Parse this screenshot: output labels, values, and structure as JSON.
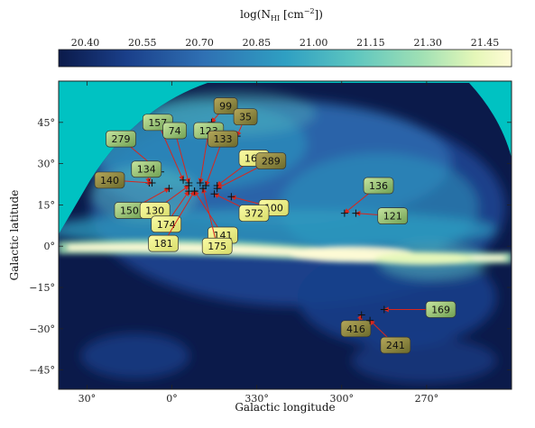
{
  "chart_data": {
    "type": "heatmap",
    "title": "log(N_HI [cm^-2])",
    "colorbar": {
      "label": "log(N",
      "label_sub": "HI",
      "label_tail": " [cm",
      "label_sup": "−2",
      "label_end": "])",
      "ticks": [
        "20.40",
        "20.55",
        "20.70",
        "20.85",
        "21.00",
        "21.15",
        "21.30",
        "21.45"
      ],
      "range": [
        20.33,
        21.52
      ],
      "colormap": [
        "#0b1a4a",
        "#1a3f8a",
        "#2f70b3",
        "#2f9fc2",
        "#5cc5c0",
        "#9fe0b4",
        "#e5f7b8",
        "#fffbd6"
      ]
    },
    "xlabel": "Galactic longitude",
    "ylabel": "Galactic latitude",
    "x_ticks": [
      {
        "value": 30,
        "label": "30°"
      },
      {
        "value": 0,
        "label": "0°"
      },
      {
        "value": 330,
        "label": "330°"
      },
      {
        "value": 300,
        "label": "300°"
      },
      {
        "value": 270,
        "label": "270°"
      }
    ],
    "y_ticks": [
      {
        "value": 45,
        "label": "45°"
      },
      {
        "value": 30,
        "label": "30°"
      },
      {
        "value": 15,
        "label": "15°"
      },
      {
        "value": 0,
        "label": "0°"
      },
      {
        "value": -15,
        "label": "−15°"
      },
      {
        "value": -30,
        "label": "−30°"
      },
      {
        "value": -45,
        "label": "−45°"
      }
    ],
    "xlim": [
      40,
      240
    ],
    "ylim": [
      -52,
      60
    ],
    "background_color": "#00c2c2",
    "arrow_color": "#d9261c",
    "sightlines": [
      {
        "id": "99",
        "label_l": 341,
        "label_b": 51,
        "target_l": 346,
        "target_b": 45
      },
      {
        "id": "35",
        "label_l": 334,
        "label_b": 47,
        "target_l": 337,
        "target_b": 40
      },
      {
        "id": "157",
        "label_l": 5,
        "label_b": 45,
        "target_l": 356,
        "target_b": 24
      },
      {
        "id": "74",
        "label_l": 359,
        "label_b": 42,
        "target_l": 354,
        "target_b": 23
      },
      {
        "id": "123",
        "label_l": 347,
        "label_b": 42,
        "target_l": 350,
        "target_b": 23
      },
      {
        "id": "133",
        "label_l": 342,
        "label_b": 39,
        "target_l": 348,
        "target_b": 22
      },
      {
        "id": "279",
        "label_l": 18,
        "label_b": 39,
        "target_l": 4,
        "target_b": 27
      },
      {
        "id": "160",
        "label_l": 331,
        "label_b": 32,
        "target_l": 344,
        "target_b": 22
      },
      {
        "id": "289",
        "label_l": 325,
        "label_b": 31,
        "target_l": 344,
        "target_b": 21
      },
      {
        "id": "134",
        "label_l": 9,
        "label_b": 28,
        "target_l": 8,
        "target_b": 23
      },
      {
        "id": "140",
        "label_l": 22,
        "label_b": 24,
        "target_l": 7,
        "target_b": 23
      },
      {
        "id": "136",
        "label_l": 287,
        "label_b": 22,
        "target_l": 299,
        "target_b": 12
      },
      {
        "id": "150",
        "label_l": 15,
        "label_b": 13,
        "target_l": 1,
        "target_b": 21
      },
      {
        "id": "130",
        "label_l": 6,
        "label_b": 13,
        "target_l": 354,
        "target_b": 22
      },
      {
        "id": "100",
        "label_l": 324,
        "label_b": 14,
        "target_l": 339,
        "target_b": 18
      },
      {
        "id": "372",
        "label_l": 331,
        "label_b": 12,
        "target_l": 345,
        "target_b": 19
      },
      {
        "id": "121",
        "label_l": 282,
        "label_b": 11,
        "target_l": 295,
        "target_b": 12
      },
      {
        "id": "174",
        "label_l": 2,
        "label_b": 8,
        "target_l": 354,
        "target_b": 20
      },
      {
        "id": "141",
        "label_l": 342,
        "label_b": 4,
        "target_l": 352,
        "target_b": 20
      },
      {
        "id": "181",
        "label_l": 3,
        "label_b": 1,
        "target_l": 352,
        "target_b": 20
      },
      {
        "id": "175",
        "label_l": 344,
        "label_b": 0,
        "target_l": 349,
        "target_b": 21
      },
      {
        "id": "169",
        "label_l": 265,
        "label_b": -23,
        "target_l": 285,
        "target_b": -23
      },
      {
        "id": "416",
        "label_l": 295,
        "label_b": -30,
        "target_l": 293,
        "target_b": -25
      },
      {
        "id": "241",
        "label_l": 281,
        "label_b": -36,
        "target_l": 290,
        "target_b": -27
      }
    ]
  }
}
